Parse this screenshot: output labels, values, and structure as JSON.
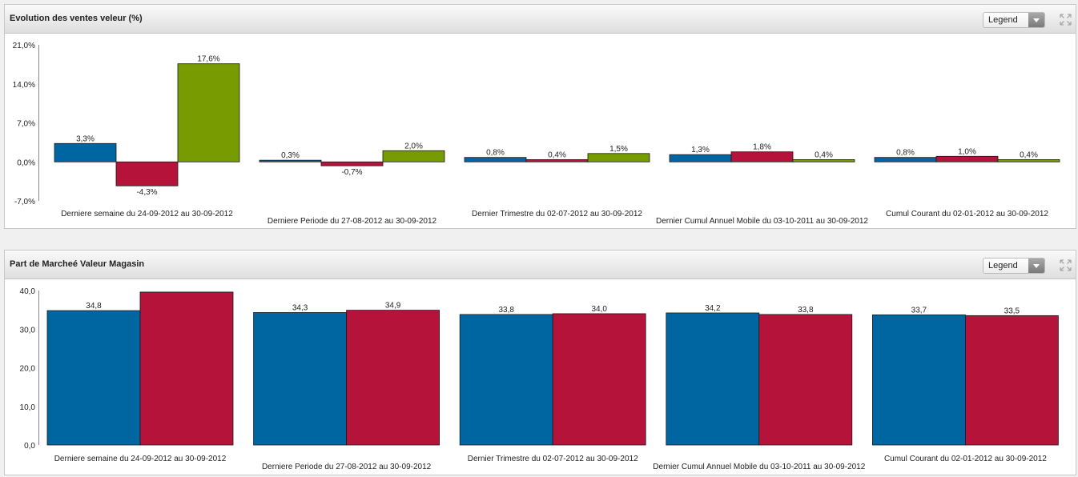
{
  "charts": [
    {
      "header": {
        "title": "Evolution des ventes veleur (%)",
        "legend_label": "Legend"
      },
      "chart_data": {
        "type": "bar",
        "categories": [
          "Derniere semaine du 24-09-2012 au 30-09-2012",
          "Derniere Periode du 27-08-2012 au 30-09-2012",
          "Dernier Trimestre du 02-07-2012 au 30-09-2012",
          "Dernier Cumul Annuel Mobile du 03-10-2011 au 30-09-2012",
          "Cumul Courant du 02-01-2012 au 30-09-2012"
        ],
        "series": [
          {
            "color": "#0066a1",
            "values": [
              3.3,
              0.3,
              0.8,
              1.3,
              0.8
            ],
            "labels": [
              "3,3%",
              "0,3%",
              "0,8%",
              "1,3%",
              "0,8%"
            ]
          },
          {
            "color": "#b5133a",
            "values": [
              -4.3,
              -0.7,
              0.4,
              1.8,
              1.0
            ],
            "labels": [
              "-4,3%",
              "-0,7%",
              "0,4%",
              "1,8%",
              "1,0%"
            ]
          },
          {
            "color": "#779b00",
            "values": [
              17.6,
              2.0,
              1.5,
              0.4,
              0.4
            ],
            "labels": [
              "17,6%",
              "2,0%",
              "1,5%",
              "0,4%",
              "0,4%"
            ]
          }
        ],
        "yticks": [
          "21,0%",
          "14,0%",
          "7,0%",
          "0,0%",
          "-7,0%"
        ],
        "ylim": [
          -7,
          21
        ],
        "grid": false
      }
    },
    {
      "header": {
        "title": "Part de Marcheé Valeur Magasin",
        "legend_label": "Legend"
      },
      "chart_data": {
        "type": "bar",
        "categories": [
          "Derniere semaine du 24-09-2012 au 30-09-2012",
          "Derniere Periode du 27-08-2012 au 30-09-2012",
          "Dernier Trimestre du 02-07-2012 au 30-09-2012",
          "Dernier Cumul Annuel Mobile du 03-10-2011 au 30-09-2012",
          "Cumul Courant du 02-01-2012 au 30-09-2012"
        ],
        "series": [
          {
            "color": "#0066a1",
            "values": [
              34.8,
              34.3,
              33.8,
              34.2,
              33.7
            ],
            "labels": [
              "34,8",
              "34,3",
              "33,8",
              "34,2",
              "33,7"
            ]
          },
          {
            "color": "#b5133a",
            "values": [
              39.6,
              34.9,
              34.0,
              33.8,
              33.5
            ],
            "labels": [
              "",
              "34,9",
              "34,0",
              "33,8",
              "33,5"
            ]
          }
        ],
        "yticks": [
          "40,0",
          "30,0",
          "20,0",
          "10,0",
          "0,0"
        ],
        "ylim": [
          0,
          40
        ],
        "grid": false
      }
    }
  ]
}
